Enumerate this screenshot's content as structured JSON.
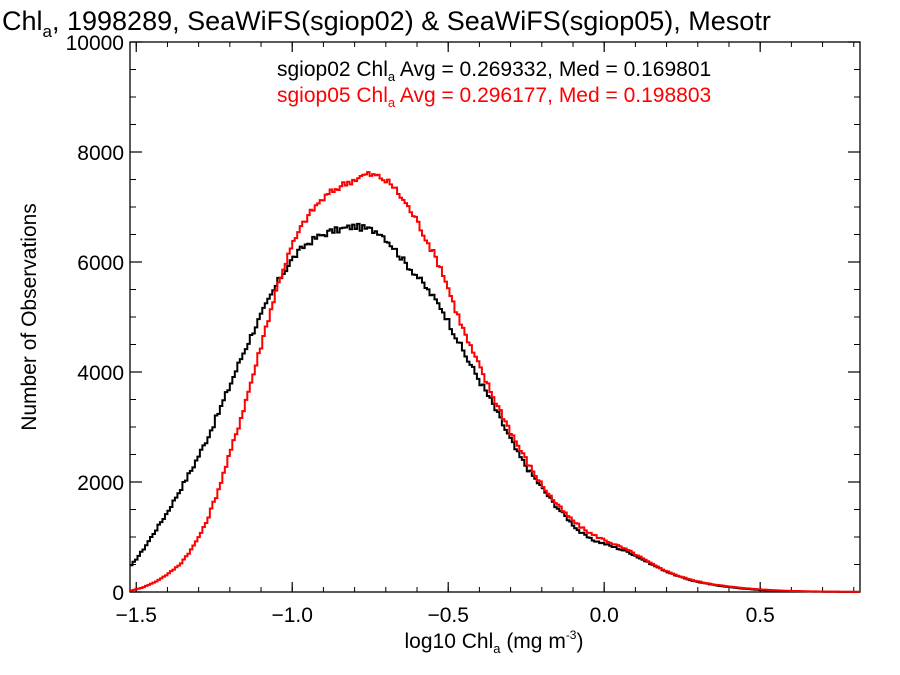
{
  "chart_data": {
    "type": "line",
    "title": {
      "prefix": "Chl",
      "sub": "a",
      "rest": ", 1998289, SeaWiFS(sgiop02) & SeaWiFS(sgiop05), Mesotr"
    },
    "xlabel": {
      "prefix": "log10 Chl",
      "sub": "a",
      "mid": " (mg m",
      "sup": "-3",
      "suffix": ")"
    },
    "ylabel": "Number of Observations",
    "xlim": [
      -1.52,
      0.82
    ],
    "ylim": [
      0,
      10000
    ],
    "grid": false,
    "x_ticks": [
      {
        "value": -1.5,
        "label": "−1.5"
      },
      {
        "value": -1.0,
        "label": "−1.0"
      },
      {
        "value": -0.5,
        "label": "−0.5"
      },
      {
        "value": 0.0,
        "label": "0.0"
      },
      {
        "value": 0.5,
        "label": "0.5"
      }
    ],
    "y_ticks": [
      {
        "value": 0,
        "label": "0"
      },
      {
        "value": 2000,
        "label": "2000"
      },
      {
        "value": 4000,
        "label": "4000"
      },
      {
        "value": 6000,
        "label": "6000"
      },
      {
        "value": 8000,
        "label": "8000"
      },
      {
        "value": 10000,
        "label": "10000"
      }
    ],
    "annotations": [
      {
        "color": "#000000",
        "prefix": "sgiop02 Chl",
        "sub": "a",
        "rest": " Avg = 0.269332, Med = 0.169801"
      },
      {
        "color": "#ff0000",
        "prefix": "sgiop05 Chl",
        "sub": "a",
        "rest": " Avg = 0.296177, Med = 0.198803"
      }
    ],
    "series": [
      {
        "color": "#000000",
        "x": [
          -1.52,
          -1.48,
          -1.44,
          -1.4,
          -1.36,
          -1.32,
          -1.28,
          -1.24,
          -1.2,
          -1.16,
          -1.12,
          -1.08,
          -1.04,
          -1.0,
          -0.96,
          -0.92,
          -0.88,
          -0.84,
          -0.8,
          -0.76,
          -0.72,
          -0.68,
          -0.64,
          -0.6,
          -0.56,
          -0.52,
          -0.48,
          -0.44,
          -0.4,
          -0.36,
          -0.32,
          -0.28,
          -0.24,
          -0.2,
          -0.16,
          -0.12,
          -0.08,
          -0.04,
          0.0,
          0.04,
          0.08,
          0.12,
          0.16,
          0.2,
          0.24,
          0.28,
          0.32,
          0.36,
          0.4,
          0.44,
          0.48,
          0.52,
          0.56,
          0.6,
          0.64,
          0.68,
          0.72,
          0.76,
          0.8,
          0.82
        ],
        "y": [
          450,
          750,
          1100,
          1450,
          1850,
          2250,
          2700,
          3200,
          3750,
          4300,
          4800,
          5250,
          5700,
          6050,
          6300,
          6450,
          6550,
          6600,
          6650,
          6600,
          6550,
          6300,
          6000,
          5750,
          5450,
          5150,
          4700,
          4250,
          3850,
          3450,
          3000,
          2550,
          2200,
          1900,
          1600,
          1350,
          1100,
          950,
          880,
          800,
          720,
          600,
          480,
          370,
          280,
          210,
          160,
          120,
          90,
          65,
          45,
          30,
          20,
          14,
          10,
          7,
          5,
          3,
          2,
          2
        ]
      },
      {
        "color": "#ff0000",
        "x": [
          -1.52,
          -1.48,
          -1.44,
          -1.4,
          -1.36,
          -1.32,
          -1.28,
          -1.24,
          -1.2,
          -1.16,
          -1.12,
          -1.08,
          -1.04,
          -1.0,
          -0.96,
          -0.92,
          -0.88,
          -0.84,
          -0.8,
          -0.76,
          -0.72,
          -0.68,
          -0.64,
          -0.6,
          -0.56,
          -0.52,
          -0.48,
          -0.44,
          -0.4,
          -0.36,
          -0.32,
          -0.28,
          -0.24,
          -0.2,
          -0.16,
          -0.12,
          -0.08,
          -0.04,
          0.0,
          0.04,
          0.08,
          0.12,
          0.16,
          0.2,
          0.24,
          0.28,
          0.32,
          0.36,
          0.4,
          0.44,
          0.48,
          0.52,
          0.56,
          0.6,
          0.64,
          0.68,
          0.72,
          0.76,
          0.8,
          0.82
        ],
        "y": [
          20,
          80,
          180,
          320,
          500,
          800,
          1200,
          1800,
          2500,
          3250,
          4050,
          4900,
          5700,
          6300,
          6750,
          7050,
          7250,
          7400,
          7500,
          7600,
          7550,
          7400,
          7100,
          6750,
          6300,
          5850,
          5200,
          4600,
          4100,
          3600,
          3150,
          2700,
          2300,
          1950,
          1650,
          1400,
          1200,
          1050,
          950,
          850,
          750,
          620,
          490,
          380,
          290,
          220,
          170,
          130,
          100,
          75,
          55,
          40,
          28,
          20,
          15,
          10,
          7,
          5,
          3,
          2
        ]
      }
    ]
  }
}
